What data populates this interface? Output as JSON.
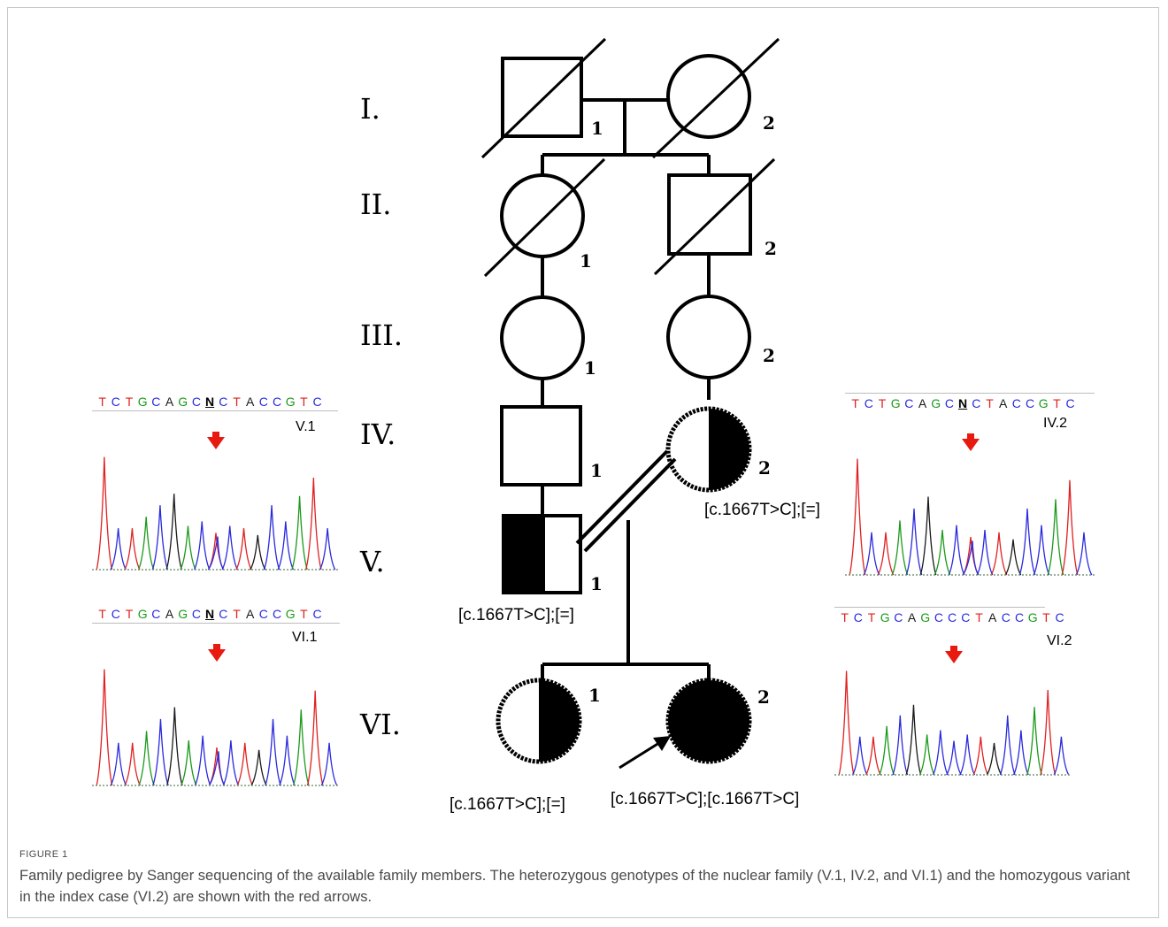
{
  "generations": [
    "I.",
    "II.",
    "III.",
    "IV.",
    "V.",
    "VI."
  ],
  "individual_numbers": {
    "I1": "1",
    "I2": "2",
    "II1": "1",
    "II2": "2",
    "III1": "1",
    "III2": "2",
    "IV1": "1",
    "IV2": "2",
    "V1": "1",
    "VI1": "1",
    "VI2": "2"
  },
  "genotypes": {
    "IV2": "[c.1667T>C];[=]",
    "V1": "[c.1667T>C];[=]",
    "VI1": "[c.1667T>C];[=]",
    "VI2": "[c.1667T>C];[c.1667T>C]"
  },
  "sequences": {
    "V1": {
      "label": "V.1",
      "bases": [
        "T",
        "C",
        "T",
        "G",
        "C",
        "A",
        "G",
        "C",
        "N",
        "C",
        "T",
        "A",
        "C",
        "C",
        "G",
        "T",
        "C"
      ]
    },
    "VI1": {
      "label": "VI.1",
      "bases": [
        "T",
        "C",
        "T",
        "G",
        "C",
        "A",
        "G",
        "C",
        "N",
        "C",
        "T",
        "A",
        "C",
        "C",
        "G",
        "T",
        "C"
      ]
    },
    "IV2": {
      "label": "IV.2",
      "bases": [
        "T",
        "C",
        "T",
        "G",
        "C",
        "A",
        "G",
        "C",
        "N",
        "C",
        "T",
        "A",
        "C",
        "C",
        "G",
        "T",
        "C"
      ]
    },
    "VI2": {
      "label": "VI.2",
      "bases": [
        "T",
        "C",
        "T",
        "G",
        "C",
        "A",
        "G",
        "C",
        "C",
        "C",
        "T",
        "A",
        "C",
        "C",
        "G",
        "T",
        "C"
      ]
    }
  },
  "colors": {
    "T": "#e02020",
    "C": "#2a2adf",
    "G": "#1a9a1a",
    "A": "#1a1a1a",
    "N": "#000000",
    "arrow": "#e8190f"
  },
  "caption": {
    "label": "FIGURE 1",
    "text": "Family pedigree by Sanger sequencing of the available family members. The heterozygous genotypes of the nuclear family (V.1, IV.2, and VI.1) and the homozygous variant in the index case (VI.2) are shown with the red arrows."
  }
}
